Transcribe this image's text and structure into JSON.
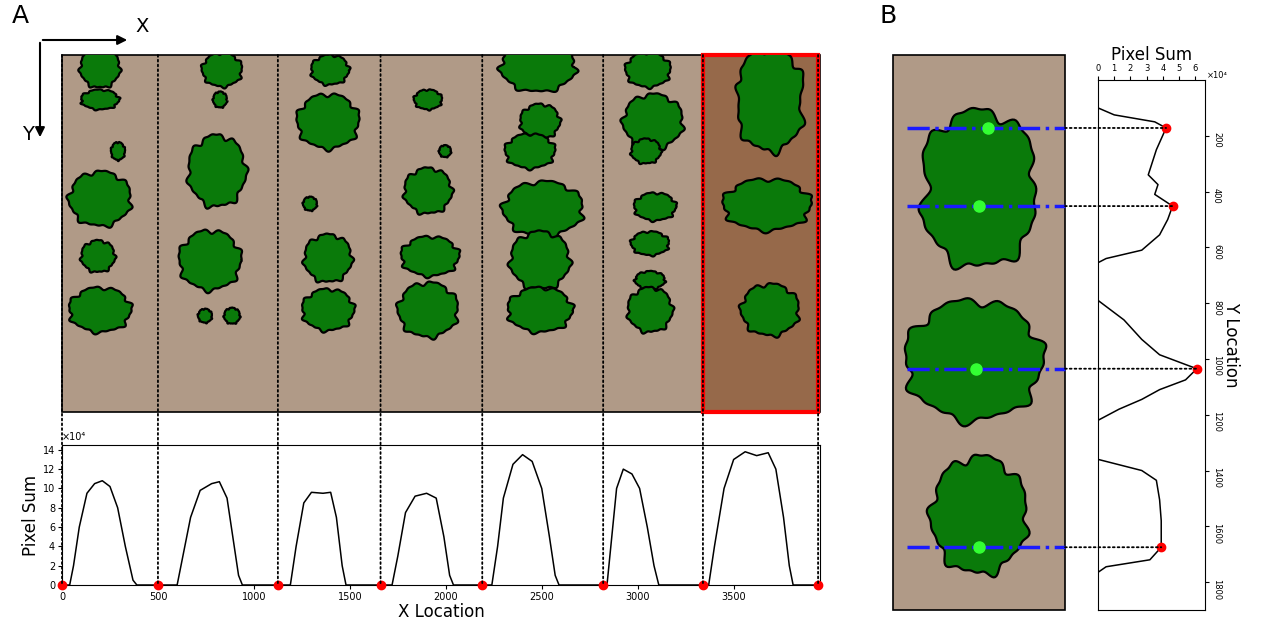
{
  "panel_labels": [
    "A",
    "B"
  ],
  "axis_arrows": {
    "x": "X",
    "y": "Y"
  },
  "chart_data": [
    {
      "type": "line",
      "x_label": "X Location",
      "y_label": "Pixel Sum",
      "y_multiplier": "×10⁴",
      "xlim": [
        0,
        3950
      ],
      "xticks": [
        0,
        500,
        1000,
        1500,
        2000,
        2500,
        3000,
        3500
      ],
      "ylim": [
        0,
        14.5
      ],
      "yticks": [
        0,
        2,
        4,
        6,
        8,
        10,
        12,
        14
      ],
      "series": [
        {
          "type": "line",
          "color": "#000000",
          "line_style": "solid",
          "x": [
            0,
            40,
            60,
            90,
            130,
            170,
            210,
            250,
            290,
            330,
            370,
            390,
            600,
            630,
            670,
            720,
            780,
            820,
            860,
            890,
            920,
            940,
            1190,
            1220,
            1260,
            1300,
            1360,
            1400,
            1430,
            1460,
            1480,
            1720,
            1750,
            1790,
            1840,
            1900,
            1950,
            1990,
            2020,
            2040,
            2240,
            2270,
            2300,
            2350,
            2400,
            2450,
            2500,
            2540,
            2570,
            2590,
            2840,
            2865,
            2890,
            2925,
            2970,
            3010,
            3050,
            3085,
            3110,
            3370,
            3400,
            3450,
            3500,
            3560,
            3620,
            3680,
            3720,
            3760,
            3790,
            3810,
            3950
          ],
          "values": [
            0,
            0,
            2,
            6,
            9.5,
            10.5,
            10.8,
            10.2,
            8,
            4,
            0.5,
            0,
            0,
            3,
            7,
            9.8,
            10.5,
            10.7,
            9,
            5,
            1,
            0,
            0,
            4,
            8.5,
            9.6,
            9.5,
            9.6,
            7,
            2,
            0,
            0,
            3,
            7.5,
            9.2,
            9.5,
            9.0,
            5,
            1,
            0,
            0,
            4,
            9,
            12.5,
            13.5,
            12.8,
            10,
            5,
            1,
            0,
            0,
            5,
            10,
            12,
            11.5,
            10,
            6,
            2,
            0,
            0,
            4,
            10,
            13,
            13.8,
            13.4,
            13.7,
            12,
            7,
            2,
            0,
            0
          ]
        },
        {
          "type": "scatter",
          "color": "#ff0000",
          "marker": "o",
          "x": [
            0,
            500,
            1125,
            1660,
            2190,
            2820,
            3340,
            3940
          ],
          "values": [
            0,
            0,
            0,
            0,
            0,
            0,
            0,
            0
          ]
        }
      ]
    },
    {
      "type": "line",
      "orientation": "horizontal",
      "x_label": "Pixel Sum",
      "y_label": "Y Location",
      "x_multiplier": "×10⁴",
      "xlim": [
        0,
        6.6
      ],
      "xticks": [
        0,
        1,
        2,
        3,
        4,
        5,
        6
      ],
      "ylim": [
        1900,
        0
      ],
      "yticks": [
        200,
        400,
        600,
        800,
        1000,
        1200,
        1400,
        1600,
        1800
      ],
      "series": [
        {
          "type": "line",
          "color": "#000000",
          "line_style": "solid",
          "y": [
            0,
            100,
            125,
            150,
            172,
            250,
            340,
            375,
            410,
            452,
            500,
            555,
            610,
            640,
            655,
            790,
            860,
            930,
            985,
            1020,
            1035,
            1075,
            1110,
            1145,
            1180,
            1220,
            1360,
            1400,
            1435,
            1505,
            1580,
            1675,
            1720,
            1745,
            1765,
            1900
          ],
          "values": [
            0,
            0,
            1,
            3.5,
            4.2,
            3.6,
            3.1,
            3.7,
            3.5,
            4.6,
            4.3,
            3.8,
            2.7,
            0.5,
            0,
            0,
            1.6,
            2.7,
            3.8,
            5.4,
            6.1,
            5.4,
            3.8,
            2.7,
            1.3,
            0,
            0,
            2.7,
            3.6,
            3.8,
            3.9,
            3.9,
            3.2,
            0.5,
            0,
            0
          ]
        },
        {
          "type": "scatter",
          "color": "#ff0000",
          "marker": "o",
          "y": [
            172,
            452,
            1035,
            1675
          ],
          "values": [
            4.2,
            4.6,
            6.1,
            3.9
          ]
        }
      ]
    }
  ]
}
